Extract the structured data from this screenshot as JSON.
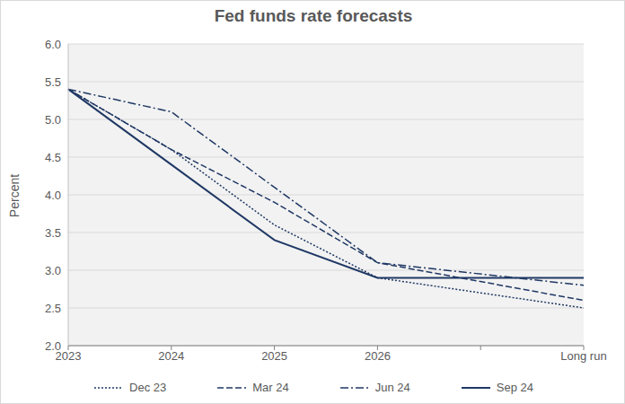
{
  "chart_data": {
    "type": "line",
    "title": "Fed funds rate forecasts",
    "y_label": "Percent",
    "categories": [
      "2023",
      "2024",
      "2025",
      "2026",
      null,
      "Long run"
    ],
    "series": [
      {
        "name": "Dec 23",
        "color": "#1f3864",
        "line_style": "dotted",
        "values": [
          5.4,
          4.6,
          3.6,
          2.9,
          null,
          2.5
        ]
      },
      {
        "name": "Mar 24",
        "color": "#1f3864",
        "line_style": "dashed",
        "values": [
          5.4,
          4.6,
          3.9,
          3.1,
          null,
          2.6
        ]
      },
      {
        "name": "Jun 24",
        "color": "#1f3864",
        "line_style": "dashdot",
        "values": [
          5.4,
          5.1,
          4.1,
          3.1,
          null,
          2.8
        ]
      },
      {
        "name": "Sep 24",
        "color": "#1f3864",
        "line_style": "solid",
        "values": [
          5.4,
          4.4,
          3.4,
          2.9,
          null,
          2.9
        ]
      }
    ],
    "ylim": [
      2,
      6
    ],
    "yticks": [
      {
        "value": 2,
        "label": "2.0"
      },
      2.5,
      {
        "value": 3,
        "label": "3.0"
      },
      3.5,
      {
        "value": 4,
        "label": "4.0"
      },
      4.5,
      {
        "value": 5,
        "label": "5.0"
      },
      5.5,
      {
        "value": 6,
        "label": "6.0"
      }
    ],
    "grid": true,
    "legend": "bottom"
  }
}
